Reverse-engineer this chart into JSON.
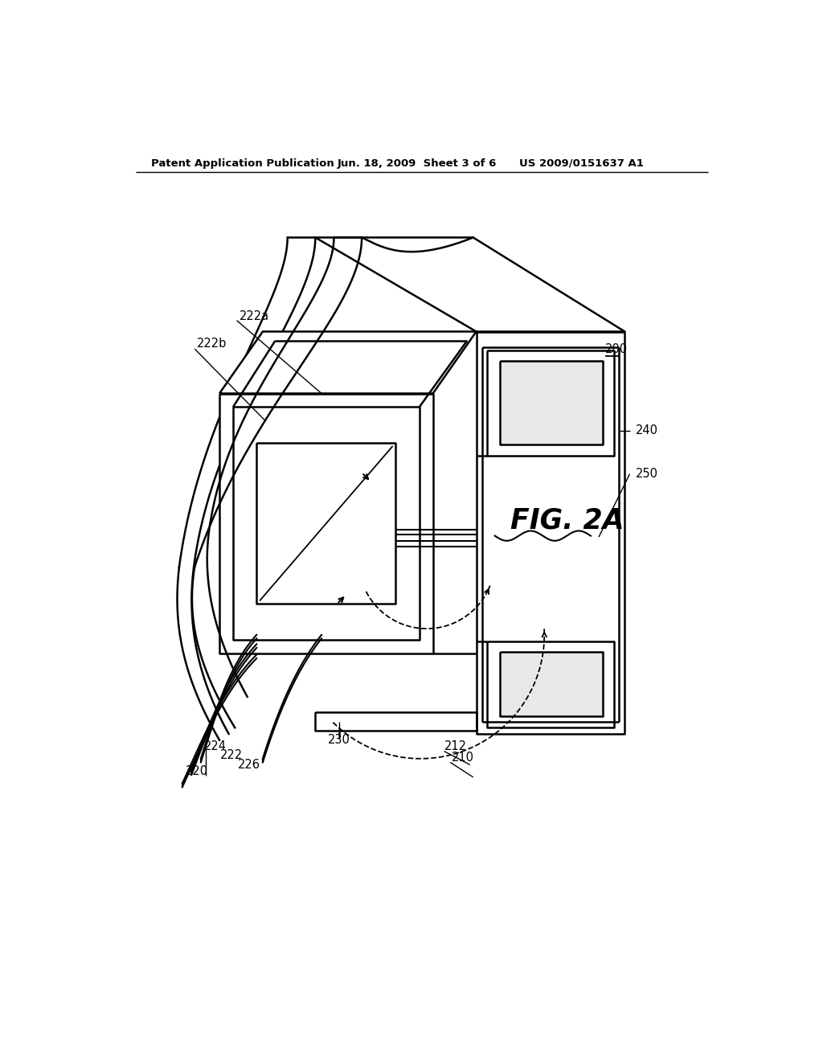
{
  "bg_color": "#ffffff",
  "line_color": "#000000",
  "header_text": "Patent Application Publication",
  "header_date": "Jun. 18, 2009  Sheet 3 of 6",
  "header_patent": "US 2009/0151637 A1",
  "fig_label": "FIG. 2A",
  "ref_200": "200",
  "ref_240": "240",
  "ref_250": "250",
  "ref_230": "230",
  "ref_222a": "222a",
  "ref_222b": "222b",
  "ref_220": "220",
  "ref_222": "222",
  "ref_224": "224",
  "ref_226": "226",
  "ref_210": "210",
  "ref_212": "212"
}
